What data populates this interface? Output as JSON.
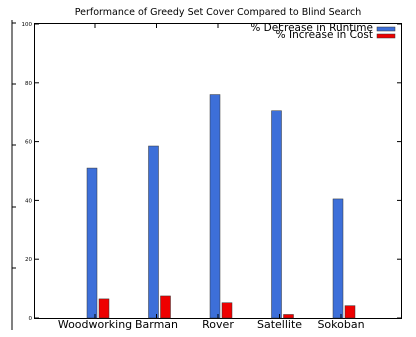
{
  "chart_data": {
    "type": "bar",
    "title": "Performance of Greedy Set Cover Compared to Blind Search",
    "xlabel": "",
    "ylabel": "",
    "ylim": [
      0,
      100
    ],
    "y_ticks": [
      0,
      20,
      40,
      60,
      80,
      100
    ],
    "grid": false,
    "legend_position": "top-right",
    "categories": [
      "Woodworking",
      "Barman",
      "Rover",
      "Satellite",
      "Sokoban"
    ],
    "series": [
      {
        "name": "% Decrease in Runtime",
        "color": "#3d6fd9",
        "values": [
          51,
          58.5,
          76,
          70.5,
          40.5
        ]
      },
      {
        "name": "% Increase in Cost",
        "color": "#ee0000",
        "values": [
          6.5,
          7.5,
          5.2,
          1.2,
          4.2
        ]
      }
    ]
  }
}
